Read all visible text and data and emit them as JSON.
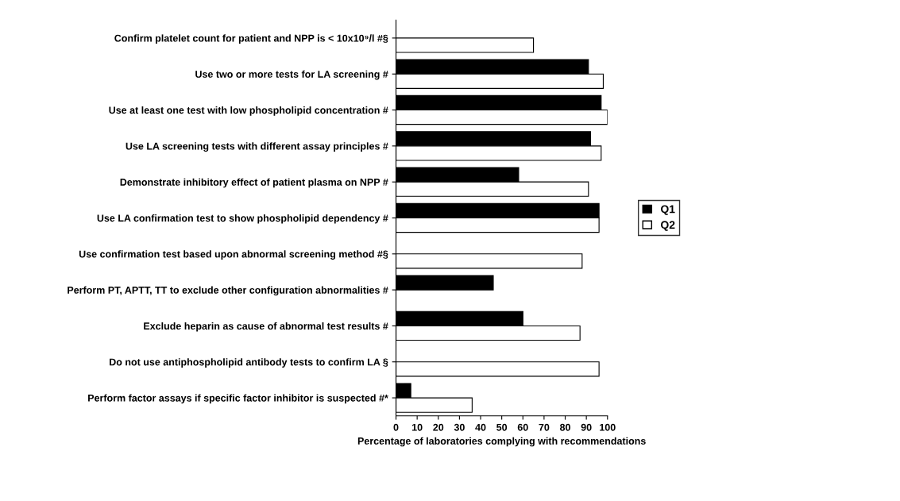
{
  "chart_data": {
    "type": "bar",
    "orientation": "horizontal",
    "xlabel": "Percentage of laboratories complying with recommendations",
    "categories": [
      "Confirm platelet count for patient and NPP is < 10x10⁹/l #§",
      "Use two or more tests for LA screening #",
      "Use at least one test with low phospholipid concentration #",
      "Use LA screening tests with different assay principles #",
      "Demonstrate inhibitory effect of patient plasma on NPP #",
      "Use LA confirmation test to show phospholipid dependency #",
      "Use confirmation test based upon abnormal screening method #§",
      "Perform PT, APTT, TT to exclude other configuration abnormalities #",
      "Exclude heparin as cause of abnormal test results #",
      "Do not use antiphospholipid antibody tests to confirm LA §",
      "Perform factor assays if specific factor inhibitor is suspected #*"
    ],
    "series": [
      {
        "name": "Q1",
        "color": "#000000",
        "values": [
          null,
          91,
          97,
          92,
          58,
          96,
          null,
          46,
          60,
          null,
          7
        ]
      },
      {
        "name": "Q2",
        "color": "#ffffff",
        "values": [
          65,
          98,
          100,
          97,
          91,
          96,
          88,
          null,
          87,
          96,
          36
        ]
      }
    ],
    "xlim": [
      0,
      100
    ],
    "xticks": [
      0,
      10,
      20,
      30,
      40,
      50,
      60,
      70,
      80,
      90,
      100
    ],
    "grid": false,
    "legend": "right"
  }
}
